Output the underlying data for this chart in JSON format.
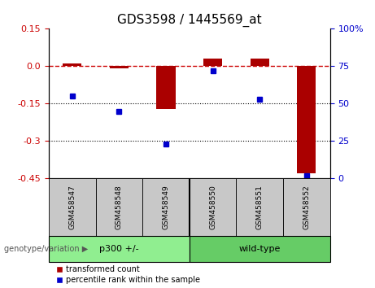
{
  "title": "GDS3598 / 1445569_at",
  "samples": [
    "GSM458547",
    "GSM458548",
    "GSM458549",
    "GSM458550",
    "GSM458551",
    "GSM458552"
  ],
  "transformed_count": [
    0.01,
    -0.01,
    -0.17,
    0.03,
    0.03,
    -0.43
  ],
  "percentile_rank": [
    55,
    45,
    23,
    72,
    53,
    2
  ],
  "groups": [
    {
      "label": "p300 +/-",
      "start": 0,
      "end": 3,
      "color": "#90EE90"
    },
    {
      "label": "wild-type",
      "start": 3,
      "end": 6,
      "color": "#66CC66"
    }
  ],
  "ylim_left": [
    -0.45,
    0.15
  ],
  "ylim_right": [
    0,
    100
  ],
  "yticks_left": [
    0.15,
    0.0,
    -0.15,
    -0.3,
    -0.45
  ],
  "yticks_right": [
    100,
    75,
    50,
    25,
    0
  ],
  "bar_color": "#AA0000",
  "dot_color": "#0000CC",
  "hline_color": "#CC0000",
  "dotline_color": "black",
  "legend_red_label": "transformed count",
  "legend_blue_label": "percentile rank within the sample",
  "group_label": "genotype/variation",
  "background_label": "#C8C8C8",
  "title_fontsize": 11,
  "tick_fontsize": 8,
  "sample_fontsize": 6.5,
  "group_fontsize": 8,
  "legend_fontsize": 7
}
